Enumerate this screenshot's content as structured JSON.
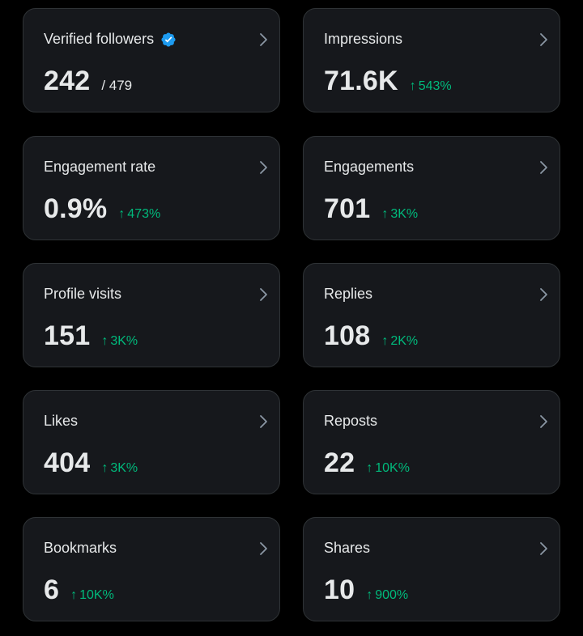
{
  "colors": {
    "background": "#000000",
    "card": "#16181c",
    "border": "#2f3336",
    "text": "#e7e9ea",
    "positive": "#00ba7c",
    "verified": "#1d9bf0",
    "chevron": "#8b98a5"
  },
  "cards": [
    {
      "label": "Verified followers",
      "value": "242",
      "sub": "/ 479",
      "icon": "verified-badge-icon"
    },
    {
      "label": "Impressions",
      "value": "71.6K",
      "change": "543%"
    },
    {
      "label": "Engagement rate",
      "value": "0.9%",
      "change": "473%"
    },
    {
      "label": "Engagements",
      "value": "701",
      "change": "3K%"
    },
    {
      "label": "Profile visits",
      "value": "151",
      "change": "3K%"
    },
    {
      "label": "Replies",
      "value": "108",
      "change": "2K%"
    },
    {
      "label": "Likes",
      "value": "404",
      "change": "3K%"
    },
    {
      "label": "Reposts",
      "value": "22",
      "change": "10K%"
    },
    {
      "label": "Bookmarks",
      "value": "6",
      "change": "10K%"
    },
    {
      "label": "Shares",
      "value": "10",
      "change": "900%"
    }
  ],
  "arrow_symbol": "↑"
}
